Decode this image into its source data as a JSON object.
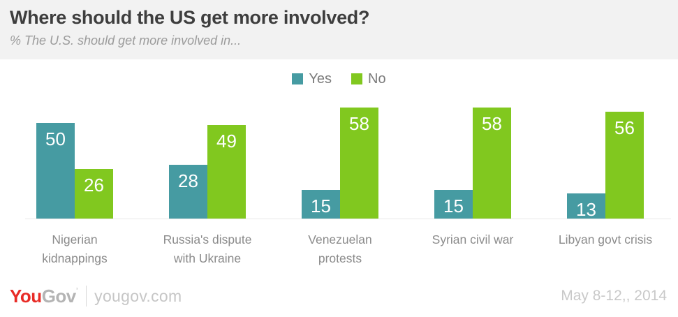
{
  "header": {
    "title": "Where should the US get more involved?",
    "subtitle": "% The U.S. should get more involved in..."
  },
  "chart_data": {
    "type": "bar",
    "title": "Where should the US get more involved?",
    "subtitle": "% The U.S. should get more involved in...",
    "categories": [
      "Nigerian kidnappings",
      "Russia's dispute with Ukraine",
      "Venezuelan protests",
      "Syrian civil war",
      "Libyan govt crisis"
    ],
    "category_lines": [
      [
        "Nigerian",
        "kidnappings"
      ],
      [
        "Russia's dispute",
        "with Ukraine"
      ],
      [
        "Venezuelan",
        "protests"
      ],
      [
        "Syrian civil war"
      ],
      [
        "Libyan govt crisis"
      ]
    ],
    "series": [
      {
        "name": "Yes",
        "color": "#469BA2",
        "values": [
          50,
          28,
          15,
          15,
          13
        ]
      },
      {
        "name": "No",
        "color": "#81C81F",
        "values": [
          26,
          49,
          58,
          58,
          56
        ]
      }
    ],
    "ylim": [
      0,
      60
    ],
    "value_labels": true,
    "grid": false,
    "legend_position": "top"
  },
  "colors": {
    "yes": "#469BA2",
    "no": "#81C81F",
    "header_bg": "#f2f2f2",
    "bar_label_text": "#ffffff"
  },
  "footer": {
    "logo_you": "You",
    "logo_gov": "Gov",
    "logo_tick": "’",
    "site": "yougov.com",
    "date": "May 8-12,, 2014"
  }
}
